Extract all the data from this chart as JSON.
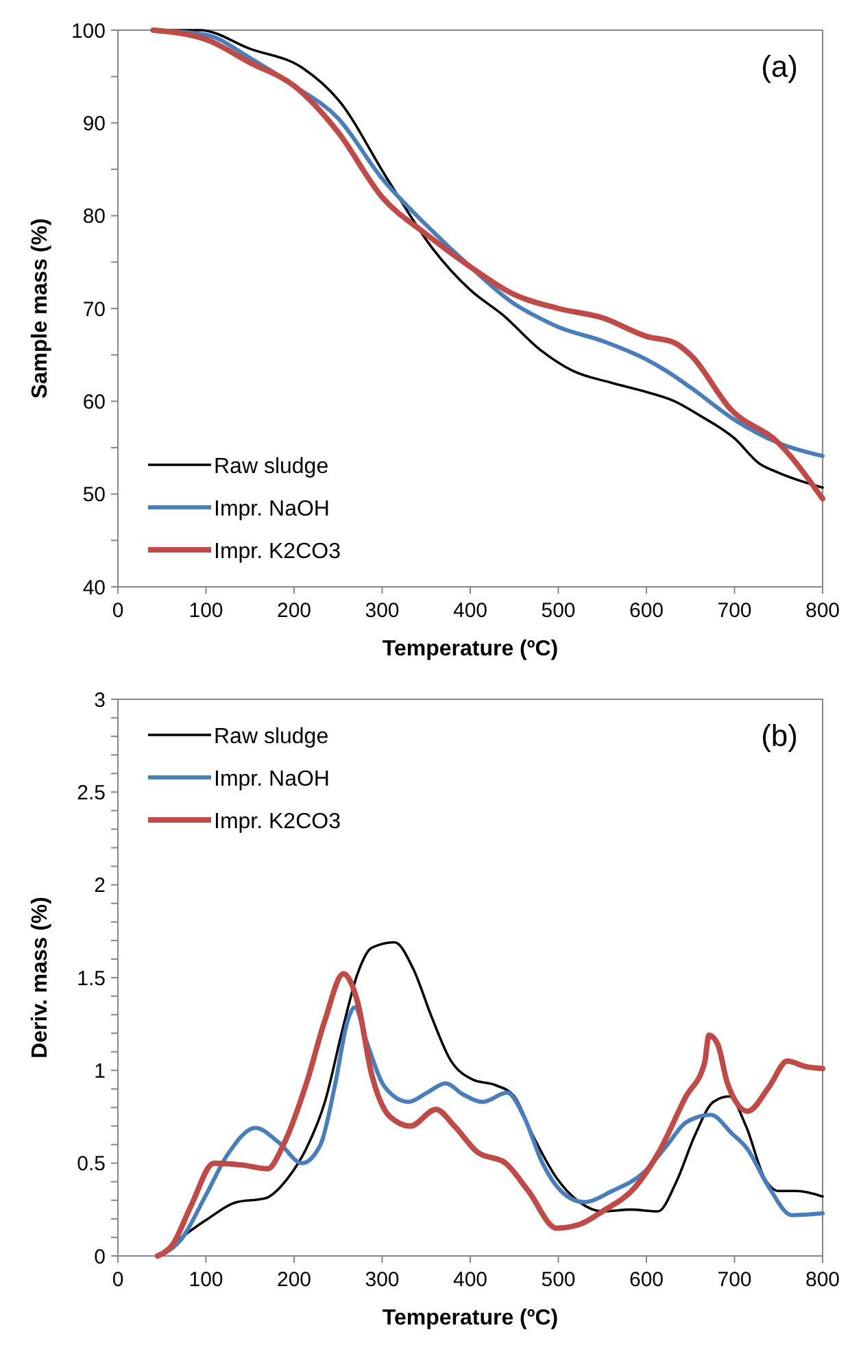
{
  "chart_data": [
    {
      "type": "line",
      "xlabel": "Temperature (ºC)",
      "ylabel": "Sample mass (%)",
      "annotations": [
        "(a)"
      ],
      "xlim": [
        0,
        800
      ],
      "xticks": [
        0,
        100,
        200,
        300,
        400,
        500,
        600,
        700,
        800
      ],
      "ylim": [
        40,
        100
      ],
      "yticks": [
        40,
        {
          "value": 45,
          "label": null
        },
        50,
        {
          "value": 55,
          "label": null
        },
        60,
        {
          "value": 65,
          "label": null
        },
        70,
        {
          "value": 75,
          "label": null
        },
        80,
        {
          "value": 85,
          "label": null
        },
        90,
        {
          "value": 95,
          "label": null
        },
        100
      ],
      "legend": "bottom left",
      "grid": false,
      "marker": "none",
      "line_style": "solid",
      "series": [
        {
          "name": "Raw sludge",
          "color": "#000000",
          "x": [
            40,
            93,
            150,
            210,
            251,
            305,
            357,
            400,
            437,
            480,
            516,
            560,
            600,
            632,
            660,
            700,
            728,
            750,
            800
          ],
          "values": [
            100,
            100,
            98,
            95.9,
            92.4,
            84.1,
            76.5,
            72,
            69.3,
            65.5,
            63.3,
            62,
            61,
            60,
            58.5,
            56,
            53.3,
            52.3,
            50.7
          ]
        },
        {
          "name": "Impr. NaOH",
          "color": "#4a7ebb",
          "x": [
            40,
            100,
            150,
            200,
            250,
            300,
            350,
            400,
            450,
            480,
            500,
            550,
            600,
            622,
            650,
            700,
            750,
            800
          ],
          "values": [
            100,
            99.5,
            97,
            94,
            90.5,
            84,
            79,
            74.5,
            70.5,
            68.9,
            68,
            66.5,
            64.5,
            63.3,
            61.5,
            58,
            55.5,
            54.1
          ]
        },
        {
          "name": "Impr. K2CO3",
          "color": "#be4b48",
          "x": [
            40,
            100,
            150,
            200,
            250,
            300,
            350,
            400,
            450,
            500,
            550,
            600,
            632,
            650,
            696,
            750,
            800
          ],
          "values": [
            100,
            99,
            96.5,
            94,
            89,
            82,
            78,
            74.5,
            71.5,
            70,
            69,
            67,
            66.3,
            65,
            59.1,
            55.5,
            49.5
          ]
        }
      ]
    },
    {
      "type": "line",
      "xlabel": "Temperature (ºC)",
      "ylabel": "Deriv. mass (%)",
      "annotations": [
        "(b)"
      ],
      "xlim": [
        0,
        800
      ],
      "xticks": [
        0,
        100,
        200,
        300,
        400,
        500,
        600,
        700,
        800
      ],
      "ylim": [
        0,
        3
      ],
      "yticks": [
        0,
        {
          "value": 0.1,
          "label": null
        },
        {
          "value": 0.2,
          "label": null
        },
        {
          "value": 0.3,
          "label": null
        },
        {
          "value": 0.4,
          "label": null
        },
        0.5,
        {
          "value": 0.6,
          "label": null
        },
        {
          "value": 0.7,
          "label": null
        },
        {
          "value": 0.8,
          "label": null
        },
        {
          "value": 0.9,
          "label": null
        },
        1,
        {
          "value": 1.1,
          "label": null
        },
        {
          "value": 1.2,
          "label": null
        },
        {
          "value": 1.3,
          "label": null
        },
        {
          "value": 1.4,
          "label": null
        },
        1.5,
        {
          "value": 1.6,
          "label": null
        },
        {
          "value": 1.7,
          "label": null
        },
        {
          "value": 1.8,
          "label": null
        },
        {
          "value": 1.9,
          "label": null
        },
        2,
        {
          "value": 2.1,
          "label": null
        },
        {
          "value": 2.2,
          "label": null
        },
        {
          "value": 2.3,
          "label": null
        },
        {
          "value": 2.4,
          "label": null
        },
        2.5,
        {
          "value": 2.6,
          "label": null
        },
        {
          "value": 2.7,
          "label": null
        },
        {
          "value": 2.8,
          "label": null
        },
        {
          "value": 2.9,
          "label": null
        },
        3
      ],
      "legend": "top left",
      "grid": false,
      "marker": "none",
      "line_style": "solid",
      "series": [
        {
          "name": "Raw sludge",
          "color": "#000000",
          "x": [
            45,
            99,
            135,
            167,
            193,
            214,
            235,
            256,
            272,
            288,
            314,
            335,
            356,
            377,
            403,
            429,
            450,
            471,
            498,
            524,
            550,
            582,
            613,
            634,
            655,
            676,
            694,
            713,
            734,
            750,
            771,
            800
          ],
          "values": [
            0,
            0.19,
            0.29,
            0.31,
            0.42,
            0.58,
            0.83,
            1.24,
            1.52,
            1.66,
            1.69,
            1.55,
            1.29,
            1.06,
            0.95,
            0.92,
            0.86,
            0.65,
            0.42,
            0.29,
            0.24,
            0.25,
            0.24,
            0.4,
            0.65,
            0.83,
            0.86,
            0.7,
            0.42,
            0.35,
            0.35,
            0.32
          ]
        },
        {
          "name": "Impr. NaOH",
          "color": "#4a7ebb",
          "x": [
            45,
            72,
            99,
            125,
            156,
            183,
            209,
            230,
            246,
            261,
            269,
            282,
            303,
            330,
            351,
            372,
            392,
            414,
            442,
            461,
            482,
            503,
            529,
            561,
            597,
            624,
            645,
            673,
            697,
            714,
            739,
            765,
            800
          ],
          "values": [
            0,
            0.09,
            0.32,
            0.55,
            0.69,
            0.61,
            0.5,
            0.6,
            0.91,
            1.27,
            1.34,
            1.16,
            0.91,
            0.83,
            0.88,
            0.93,
            0.87,
            0.83,
            0.88,
            0.75,
            0.5,
            0.35,
            0.29,
            0.35,
            0.45,
            0.6,
            0.72,
            0.76,
            0.66,
            0.58,
            0.37,
            0.22,
            0.23
          ]
        },
        {
          "name": "Impr. K2CO3",
          "color": "#be4b48",
          "x": [
            45,
            62,
            83,
            109,
            141,
            170,
            188,
            214,
            235,
            256,
            272,
            288,
            309,
            332,
            361,
            382,
            408,
            440,
            466,
            498,
            524,
            550,
            587,
            613,
            645,
            666,
            671,
            681,
            692,
            715,
            739,
            760,
            781,
            800
          ],
          "values": [
            0,
            0.06,
            0.27,
            0.5,
            0.49,
            0.47,
            0.6,
            0.93,
            1.27,
            1.52,
            1.37,
            0.98,
            0.75,
            0.7,
            0.79,
            0.7,
            0.56,
            0.5,
            0.35,
            0.15,
            0.17,
            0.24,
            0.37,
            0.55,
            0.86,
            1.04,
            1.19,
            1.14,
            0.93,
            0.78,
            0.91,
            1.05,
            1.02,
            1.01
          ]
        }
      ]
    }
  ]
}
